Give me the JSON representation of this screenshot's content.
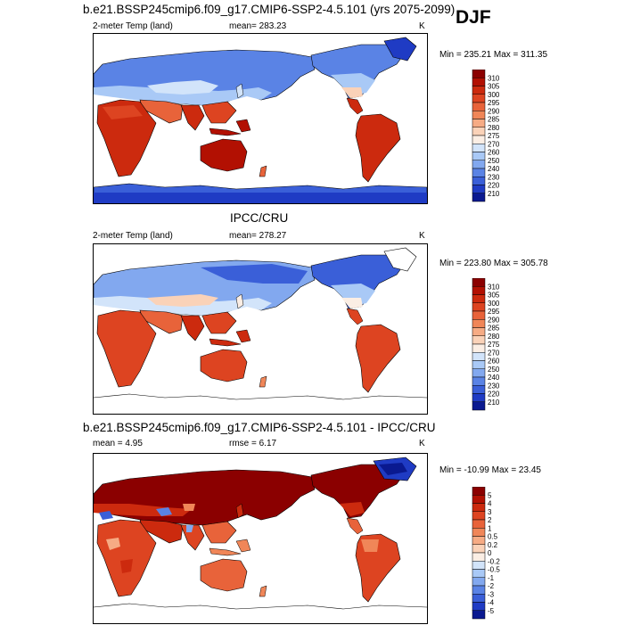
{
  "season": "DJF",
  "panels": [
    {
      "title": "b.e21.BSSP245cmip6.f09_g17.CMIP6-SSP2-4.5.101 (yrs 2075-2099)",
      "left_label": "2-meter Temp (land)",
      "stat_label": "mean= 283.23",
      "units": "K",
      "minmax": "Min = 235.21 Max = 311.35"
    },
    {
      "title": "IPCC/CRU",
      "left_label": "2-meter Temp (land)",
      "stat_label": "mean= 278.27",
      "units": "K",
      "minmax": "Min = 223.80 Max = 305.78"
    },
    {
      "title": "b.e21.BSSP245cmip6.f09_g17.CMIP6-SSP2-4.5.101 - IPCC/CRU",
      "left_label": "mean =   4.95",
      "stat_label": "rmse =   6.17",
      "units": "K",
      "minmax": "Min = -10.99 Max =  23.45"
    }
  ],
  "chart_data": [
    {
      "type": "heatmap",
      "title": "b.e21.BSSP245cmip6.f09_g17.CMIP6-SSP2-4.5.101 (yrs 2075-2099)",
      "variable": "2-meter Temp (land)",
      "units": "K",
      "mean": 283.23,
      "min": 235.21,
      "max": 311.35,
      "colorbar": {
        "levels": [
          "310",
          "305",
          "300",
          "295",
          "290",
          "285",
          "280",
          "275",
          "270",
          "260",
          "250",
          "240",
          "230",
          "220",
          "210"
        ],
        "colors": [
          "#8b0000",
          "#b21002",
          "#cc2a0e",
          "#dd4421",
          "#e8633a",
          "#f08658",
          "#f6ab84",
          "#fad2b8",
          "#fbeee4",
          "#d2e4fa",
          "#a9c9f6",
          "#82a8ef",
          "#5a83e5",
          "#3a5fd8",
          "#1f3bc4",
          "#0a1990"
        ]
      }
    },
    {
      "type": "heatmap",
      "title": "IPCC/CRU",
      "variable": "2-meter Temp (land)",
      "units": "K",
      "mean": 278.27,
      "min": 223.8,
      "max": 305.78,
      "colorbar": {
        "levels": [
          "310",
          "305",
          "300",
          "295",
          "290",
          "285",
          "280",
          "275",
          "270",
          "260",
          "250",
          "240",
          "230",
          "220",
          "210"
        ],
        "colors": [
          "#8b0000",
          "#b21002",
          "#cc2a0e",
          "#dd4421",
          "#e8633a",
          "#f08658",
          "#f6ab84",
          "#fad2b8",
          "#fbeee4",
          "#d2e4fa",
          "#a9c9f6",
          "#82a8ef",
          "#5a83e5",
          "#3a5fd8",
          "#1f3bc4",
          "#0a1990"
        ]
      }
    },
    {
      "type": "heatmap",
      "title": "b.e21.BSSP245cmip6.f09_g17.CMIP6-SSP2-4.5.101 - IPCC/CRU",
      "units": "K",
      "mean": 4.95,
      "rmse": 6.17,
      "min": -10.99,
      "max": 23.45,
      "colorbar": {
        "levels": [
          "5",
          "4",
          "3",
          "2",
          "1",
          "0.5",
          "0.2",
          "0",
          "-0.2",
          "-0.5",
          "-1",
          "-2",
          "-3",
          "-4",
          "-5"
        ],
        "colors": [
          "#8b0000",
          "#b21002",
          "#cc2a0e",
          "#dd4421",
          "#e8633a",
          "#f08658",
          "#f6ab84",
          "#fad2b8",
          "#fbeee4",
          "#d2e4fa",
          "#a9c9f6",
          "#82a8ef",
          "#5a83e5",
          "#3a5fd8",
          "#1f3bc4",
          "#0a1990"
        ]
      }
    }
  ]
}
